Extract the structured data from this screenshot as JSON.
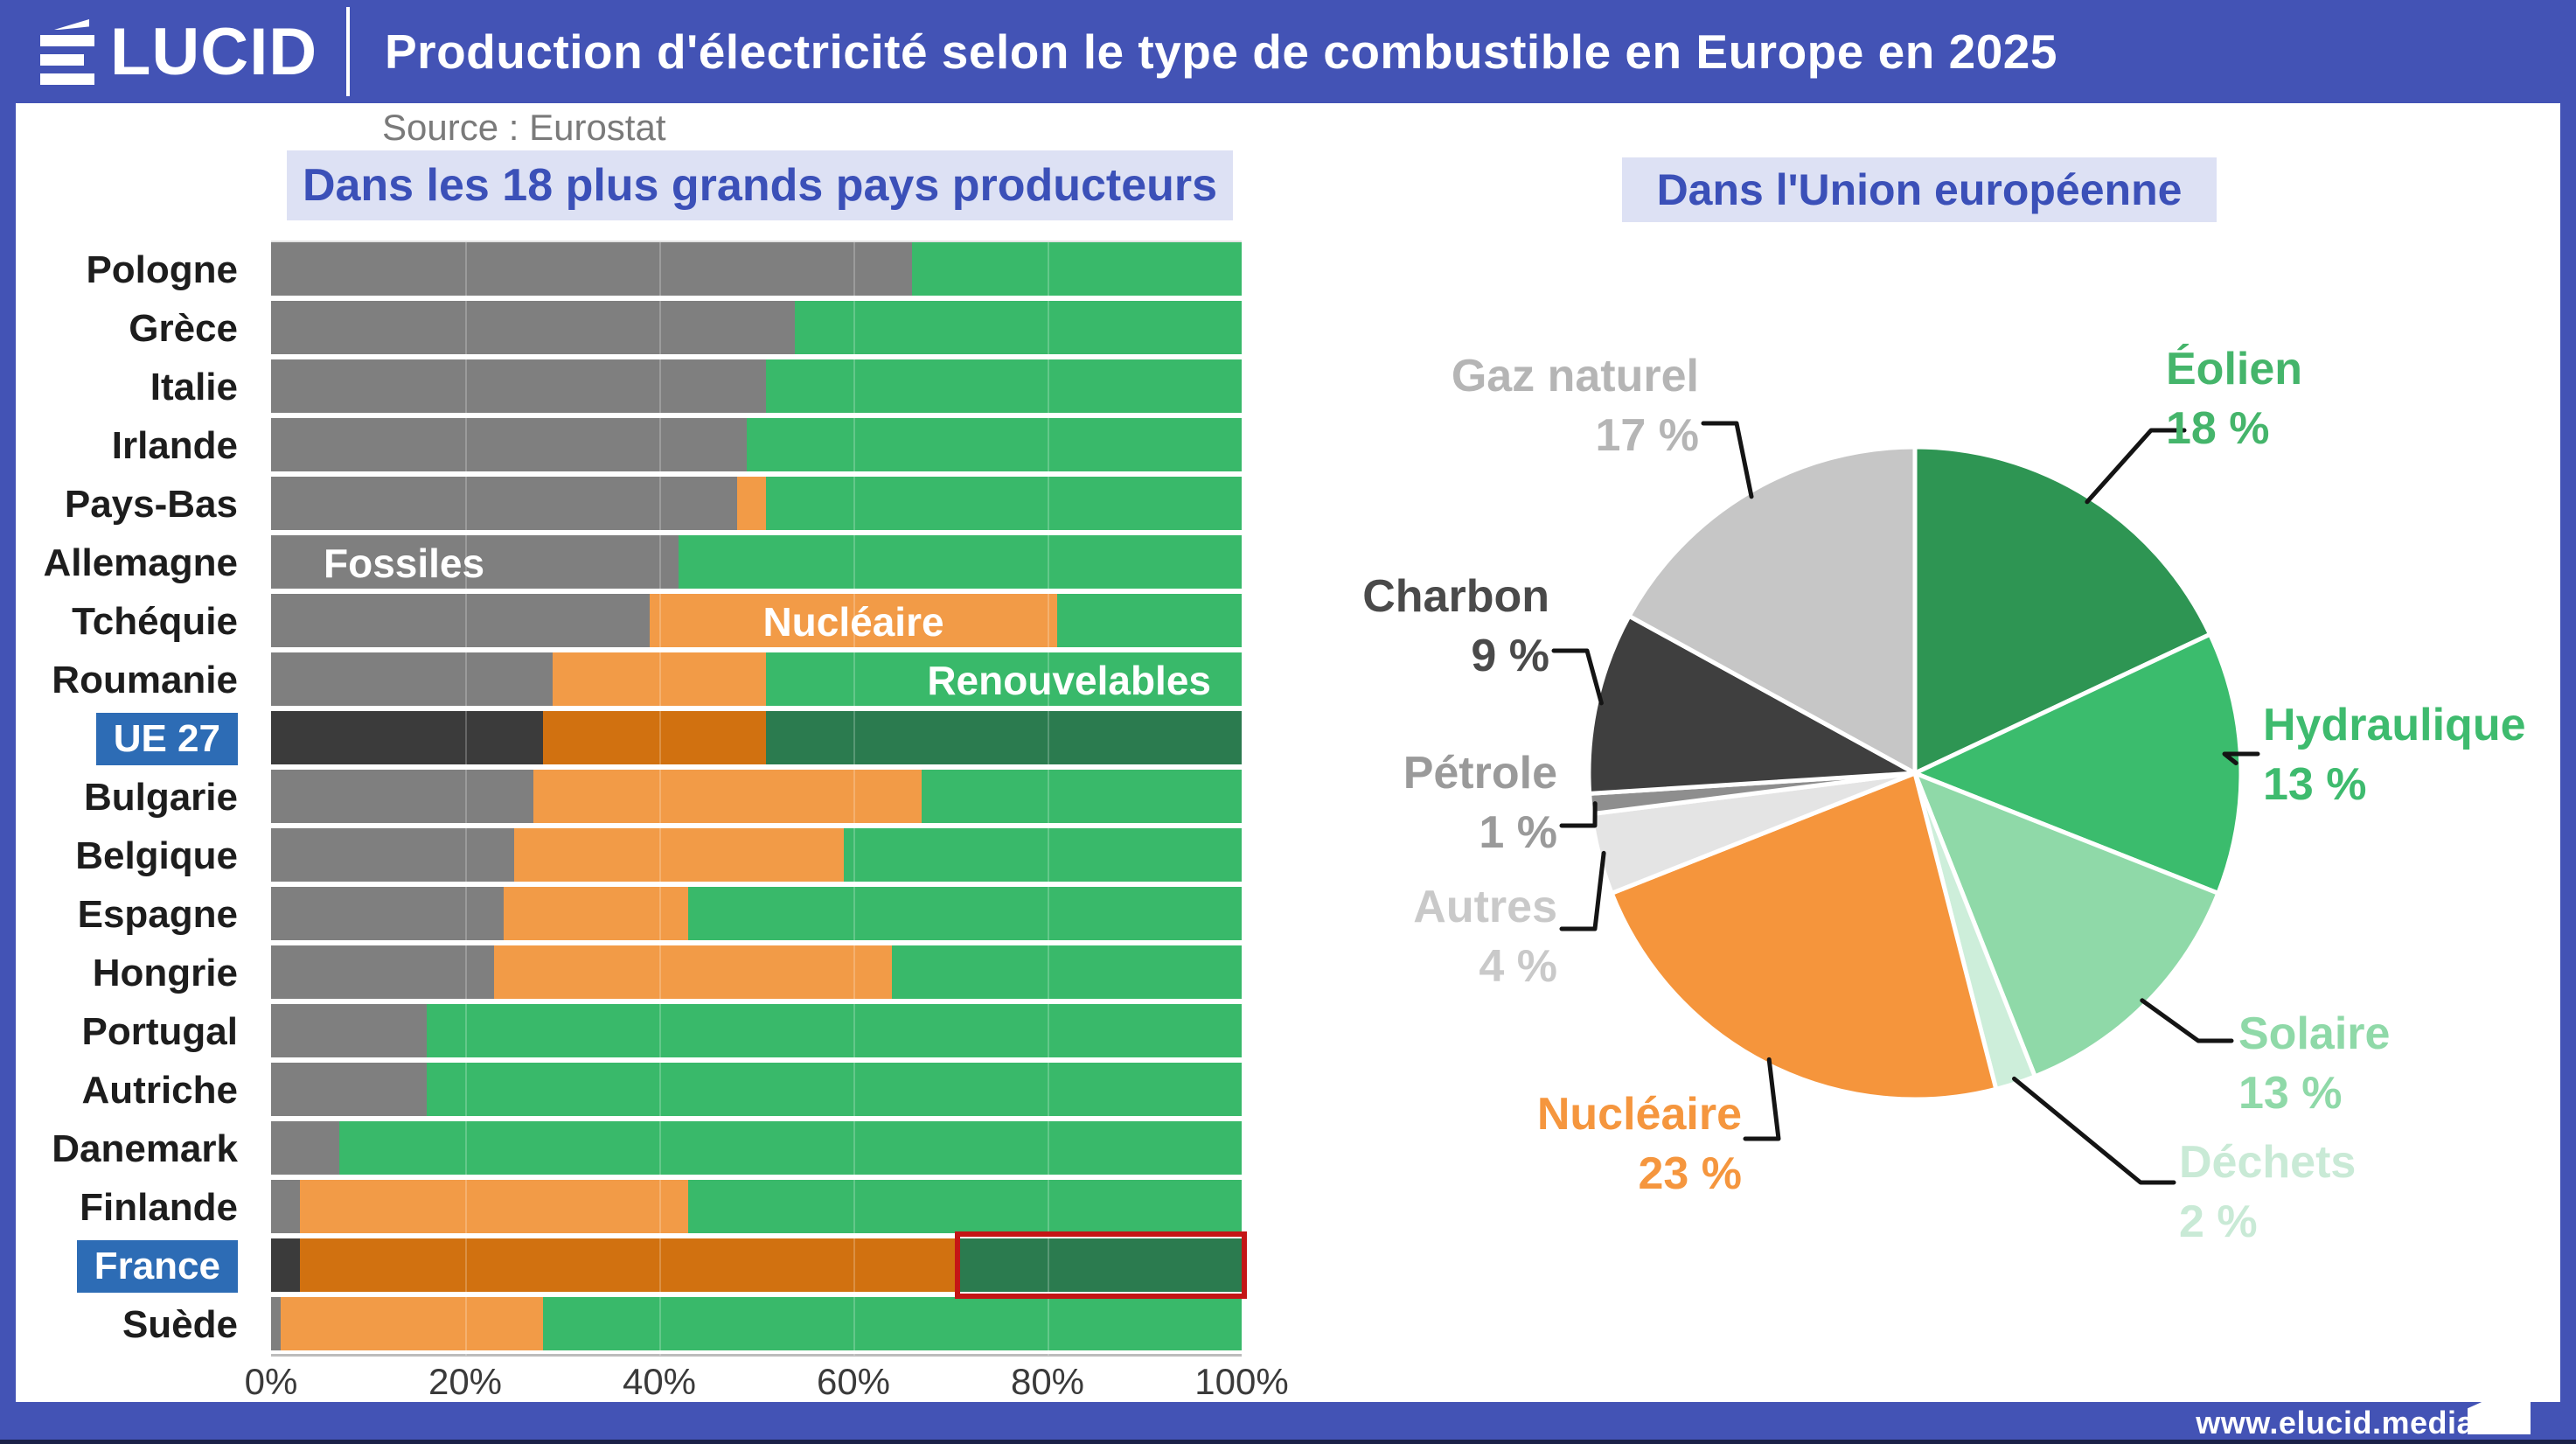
{
  "header": {
    "logo_text": "ÉLUCID",
    "logo_rest": "LUCID",
    "title": "Production d'électricité selon le type de combustible en Europe en 2025"
  },
  "source": "Source : Eurostat",
  "left_panel": {
    "subtitle": "Dans les 18 plus grands pays producteurs",
    "series_labels": {
      "fossiles": "Fossiles",
      "nucleaire": "Nucléaire",
      "renouvelables": "Renouvelables"
    }
  },
  "right_panel": {
    "subtitle": "Dans l'Union européenne"
  },
  "footer": {
    "url": "www.elucid.media"
  },
  "colors": {
    "frame_blue": "#4353b5",
    "chip_bg": "#dde1f4",
    "chip_text": "#3b50b8",
    "highlight_chip": "#2d6cb5",
    "fossiles": "#7f7f7f",
    "nucleaire": "#f29b47",
    "renouvelables": "#39b96a",
    "fossiles_dark": "#3b3b3b",
    "nucleaire_dark": "#d17110",
    "renouvelables_dark": "#2b7b4f",
    "red_annotation": "#c41616"
  },
  "chart_data": [
    {
      "type": "bar",
      "stacked": true,
      "orientation": "horizontal",
      "title": "Dans les 18 plus grands pays producteurs",
      "unit": "%",
      "xlim": [
        0,
        100
      ],
      "x_ticks": [
        "0%",
        "20%",
        "40%",
        "60%",
        "80%",
        "100%"
      ],
      "categories": [
        "Pologne",
        "Grèce",
        "Italie",
        "Irlande",
        "Pays-Bas",
        "Allemagne",
        "Tchéquie",
        "Roumanie",
        "UE 27",
        "Bulgarie",
        "Belgique",
        "Espagne",
        "Hongrie",
        "Portugal",
        "Autriche",
        "Danemark",
        "Finlande",
        "France",
        "Suède"
      ],
      "series": [
        {
          "name": "Fossiles",
          "values": [
            66,
            54,
            51,
            49,
            48,
            42,
            39,
            29,
            28,
            27,
            25,
            24,
            23,
            16,
            16,
            7,
            3,
            3,
            1
          ]
        },
        {
          "name": "Nucléaire",
          "values": [
            0,
            0,
            0,
            0,
            3,
            0,
            42,
            22,
            23,
            40,
            34,
            19,
            41,
            0,
            0,
            0,
            40,
            68,
            27
          ]
        },
        {
          "name": "Renouvelables",
          "values": [
            34,
            46,
            49,
            51,
            49,
            58,
            19,
            49,
            49,
            33,
            41,
            57,
            36,
            84,
            84,
            93,
            57,
            29,
            72
          ]
        }
      ],
      "highlighted_rows": [
        "UE 27",
        "France"
      ],
      "annotation": {
        "target_row": "France",
        "series": "Renouvelables",
        "style": "red-outline"
      }
    },
    {
      "type": "pie",
      "title": "Dans l'Union européenne",
      "start_angle": "top",
      "direction": "clockwise",
      "pct_suffix": " %",
      "slices": [
        {
          "label": "Éolien",
          "value": 18,
          "color": "#2e9553",
          "label_color": "#45b56b"
        },
        {
          "label": "Hydraulique",
          "value": 13,
          "color": "#3bbc6d",
          "label_color": "#3ebb6e"
        },
        {
          "label": "Solaire",
          "value": 13,
          "color": "#8fd9a8",
          "label_color": "#8fd9a8"
        },
        {
          "label": "Déchets",
          "value": 2,
          "color": "#cdeeda",
          "label_color": "#c9ead6"
        },
        {
          "label": "Nucléaire",
          "value": 23,
          "color": "#f5953c",
          "label_color": "#f5963e"
        },
        {
          "label": "Autres",
          "value": 4,
          "color": "#e4e4e4",
          "label_color": "#c9c9c9"
        },
        {
          "label": "Pétrole",
          "value": 1,
          "color": "#8e8e8e",
          "label_color": "#9a9a9a"
        },
        {
          "label": "Charbon",
          "value": 9,
          "color": "#3f3f3f",
          "label_color": "#4a4a4a"
        },
        {
          "label": "Gaz naturel",
          "value": 17,
          "color": "#c6c6c6",
          "label_color": "#b5b5b5"
        }
      ]
    }
  ]
}
